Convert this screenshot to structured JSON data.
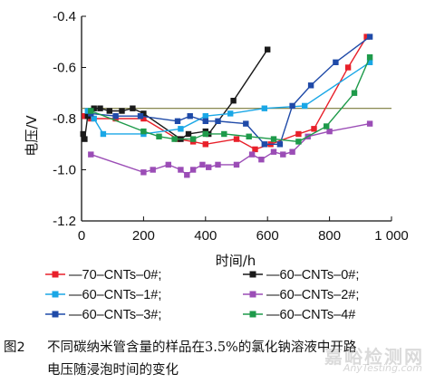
{
  "chart_data": {
    "type": "line",
    "xlabel": "时间/h",
    "ylabel": "电压/V",
    "xlim": [
      0,
      1000
    ],
    "ylim": [
      -1.2,
      -0.4
    ],
    "x_ticks": [
      {
        "value": 0,
        "label": "0"
      },
      {
        "value": 200,
        "label": "200"
      },
      {
        "value": 400,
        "label": "400"
      },
      {
        "value": 600,
        "label": "600"
      },
      {
        "value": 800,
        "label": "800"
      },
      {
        "value": 1000,
        "label": "1 000"
      }
    ],
    "y_ticks": [
      {
        "value": -0.4,
        "label": "-0.4"
      },
      {
        "value": -0.6,
        "label": "-0.6"
      },
      {
        "value": -0.8,
        "label": "-0.8"
      },
      {
        "value": -1.0,
        "label": "-1.0"
      },
      {
        "value": -1.2,
        "label": "-1.2"
      }
    ],
    "reference_line": {
      "y": -0.76,
      "color": "#7a7a3a"
    },
    "grid": false,
    "legend_position": "bottom",
    "series": [
      {
        "name": "—70–CNTs–0#;",
        "color": "#e8202a",
        "marker": "square",
        "x": [
          10,
          30,
          110,
          200,
          310,
          360,
          400,
          500,
          560,
          610,
          700,
          750,
          860,
          920
        ],
        "y": [
          -0.79,
          -0.8,
          -0.8,
          -0.8,
          -0.88,
          -0.89,
          -0.9,
          -0.88,
          -0.92,
          -0.9,
          -0.86,
          -0.84,
          -0.6,
          -0.48
        ]
      },
      {
        "name": "—60–CNTs–0#;",
        "color": "#1a1a1a",
        "marker": "square",
        "x": [
          5,
          10,
          20,
          40,
          60,
          90,
          130,
          165,
          200,
          320,
          345,
          400,
          410,
          490,
          600
        ],
        "y": [
          -0.86,
          -0.88,
          -0.79,
          -0.76,
          -0.76,
          -0.77,
          -0.77,
          -0.76,
          -0.78,
          -0.88,
          -0.86,
          -0.85,
          -0.86,
          -0.73,
          -0.53
        ]
      },
      {
        "name": "—60–CNTs–1#;",
        "color": "#1aa7e6",
        "marker": "square",
        "x": [
          20,
          40,
          70,
          200,
          320,
          400,
          480,
          590,
          720,
          930
        ],
        "y": [
          -0.77,
          -0.8,
          -0.86,
          -0.86,
          -0.84,
          -0.79,
          -0.78,
          -0.76,
          -0.75,
          -0.58
        ]
      },
      {
        "name": "—60–CNTs–2#;",
        "color": "#9b4db6",
        "marker": "square",
        "x": [
          30,
          200,
          230,
          280,
          320,
          340,
          360,
          390,
          410,
          440,
          500,
          550,
          580,
          620,
          650,
          680,
          730,
          800,
          930
        ],
        "y": [
          -0.94,
          -1.01,
          -1.0,
          -0.98,
          -1.0,
          -1.02,
          -1.0,
          -0.98,
          -0.99,
          -0.98,
          -0.98,
          -0.94,
          -0.96,
          -0.93,
          -0.94,
          -0.93,
          -0.87,
          -0.85,
          -0.82
        ]
      },
      {
        "name": "—60–CNTs–3#;",
        "color": "#1f4aa8",
        "marker": "square",
        "x": [
          30,
          110,
          190,
          310,
          350,
          400,
          440,
          530,
          590,
          640,
          680,
          740,
          820,
          930
        ],
        "y": [
          -0.78,
          -0.79,
          -0.79,
          -0.81,
          -0.79,
          -0.81,
          -0.81,
          -0.82,
          -0.9,
          -0.9,
          -0.75,
          -0.67,
          -0.58,
          -0.48
        ]
      },
      {
        "name": "—60–CNTs–4#",
        "color": "#1e9a4a",
        "marker": "square",
        "x": [
          30,
          200,
          250,
          300,
          360,
          400,
          460,
          540,
          620,
          700,
          790,
          880,
          930
        ],
        "y": [
          -0.77,
          -0.85,
          -0.87,
          -0.88,
          -0.88,
          -0.86,
          -0.86,
          -0.87,
          -0.88,
          -0.89,
          -0.83,
          -0.7,
          -0.56
        ]
      }
    ]
  },
  "caption": {
    "fig_no": "图2",
    "line1": "不同碳纳米管含量的样品在3.5%的氯化钠溶液中开路",
    "line2": "电压随浸泡时间的变化"
  },
  "watermark": {
    "main": "嘉峪检测网",
    "sub": "AnyTesting.com"
  }
}
